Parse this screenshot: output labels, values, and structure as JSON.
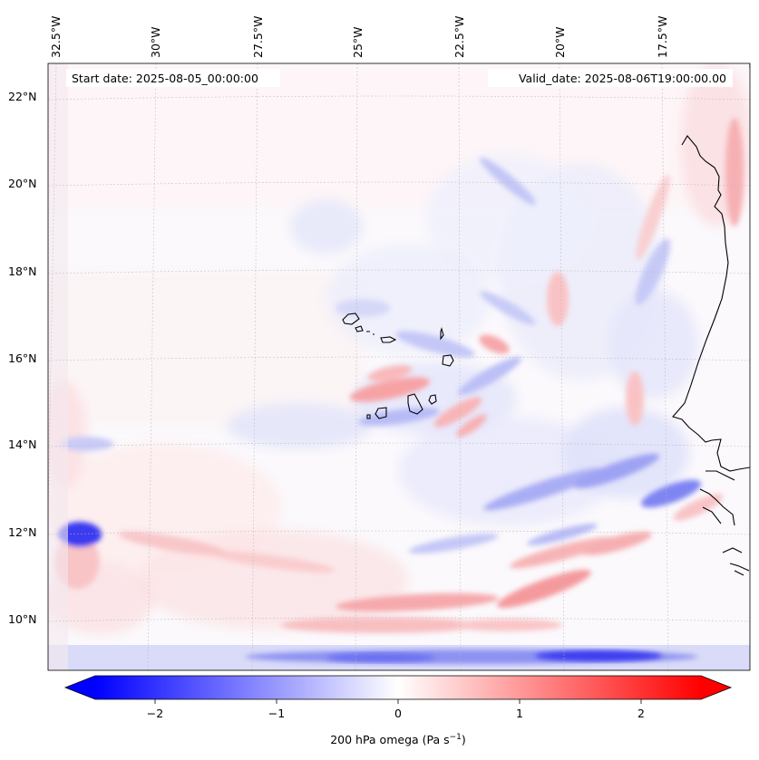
{
  "map": {
    "header": {
      "start_date": "Start date: 2025-08-05_00:00:00",
      "valid_date": "Valid_date: 2025-08-06T19:00:00.00"
    },
    "lon_labels": [
      "32.5°W",
      "30°W",
      "27.5°W",
      "25°W",
      "22.5°W",
      "20°W",
      "17.5°W"
    ],
    "lat_labels": [
      "22°N",
      "20°N",
      "18°N",
      "16°N",
      "14°N",
      "12°N",
      "10°N"
    ],
    "field": {
      "variable": "200 hPa omega",
      "colormap": "bwr",
      "positive_color": "#ff0000",
      "negative_color": "#0000ff",
      "neutral_color": "#ffffff"
    },
    "colorbar": {
      "ticks": [
        "−2",
        "−1",
        "0",
        "1",
        "2"
      ],
      "label": "200 hPa omega (Pa s",
      "label_sup": "−1",
      "label_end": ")"
    }
  }
}
